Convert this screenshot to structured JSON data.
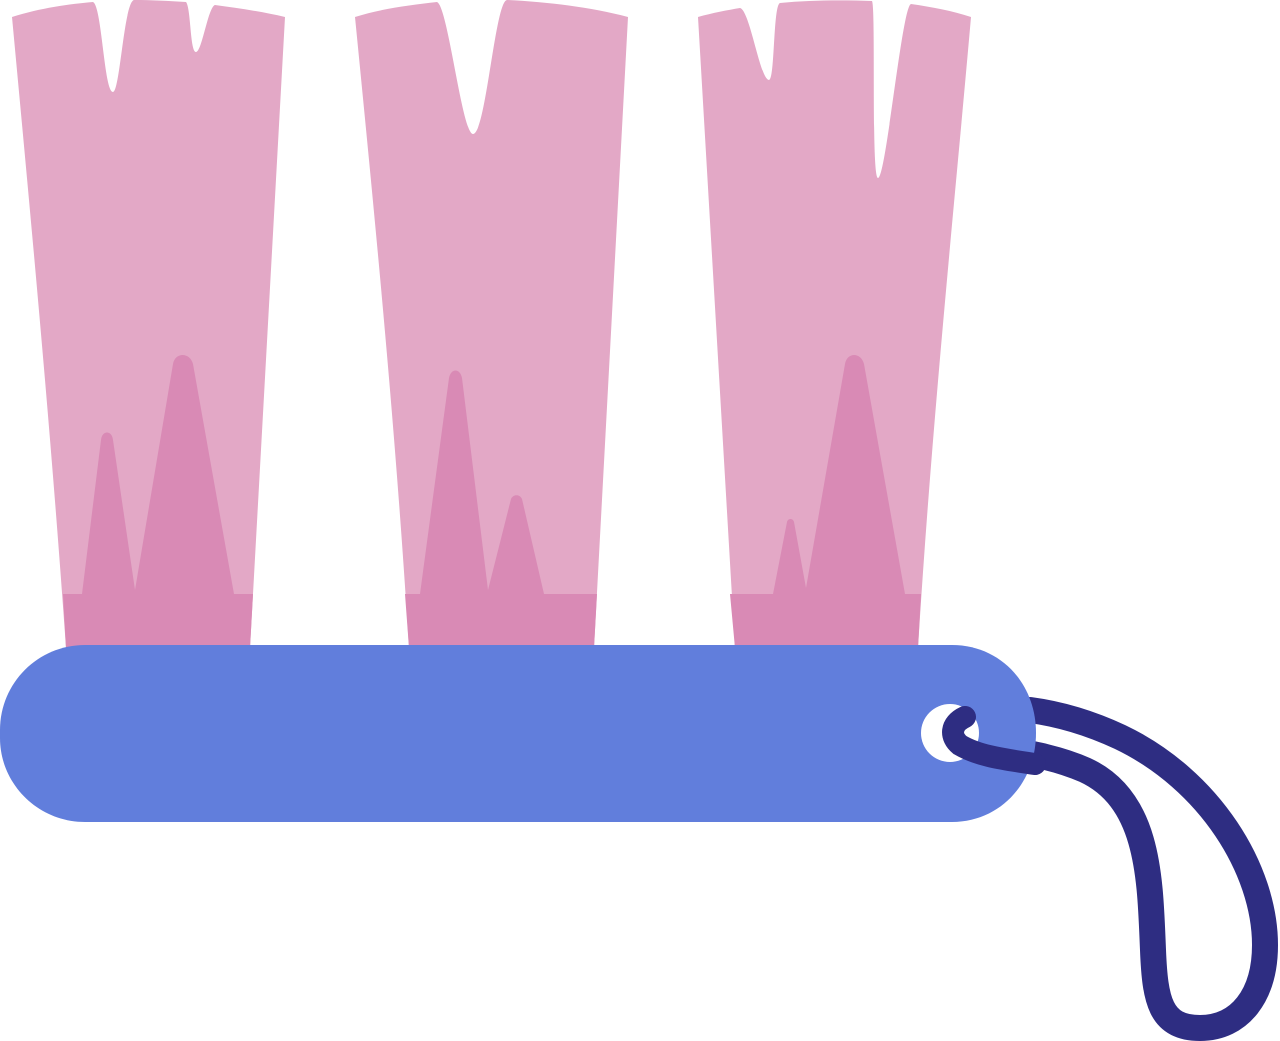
{
  "illustration": {
    "subject": "toothbrush-head-icon",
    "colors": {
      "bristle_light": "#E3A8C6",
      "bristle_dark": "#D98AB5",
      "handle": "#617EDC",
      "cord": "#2E2D82",
      "background": "#FFFFFF"
    }
  }
}
